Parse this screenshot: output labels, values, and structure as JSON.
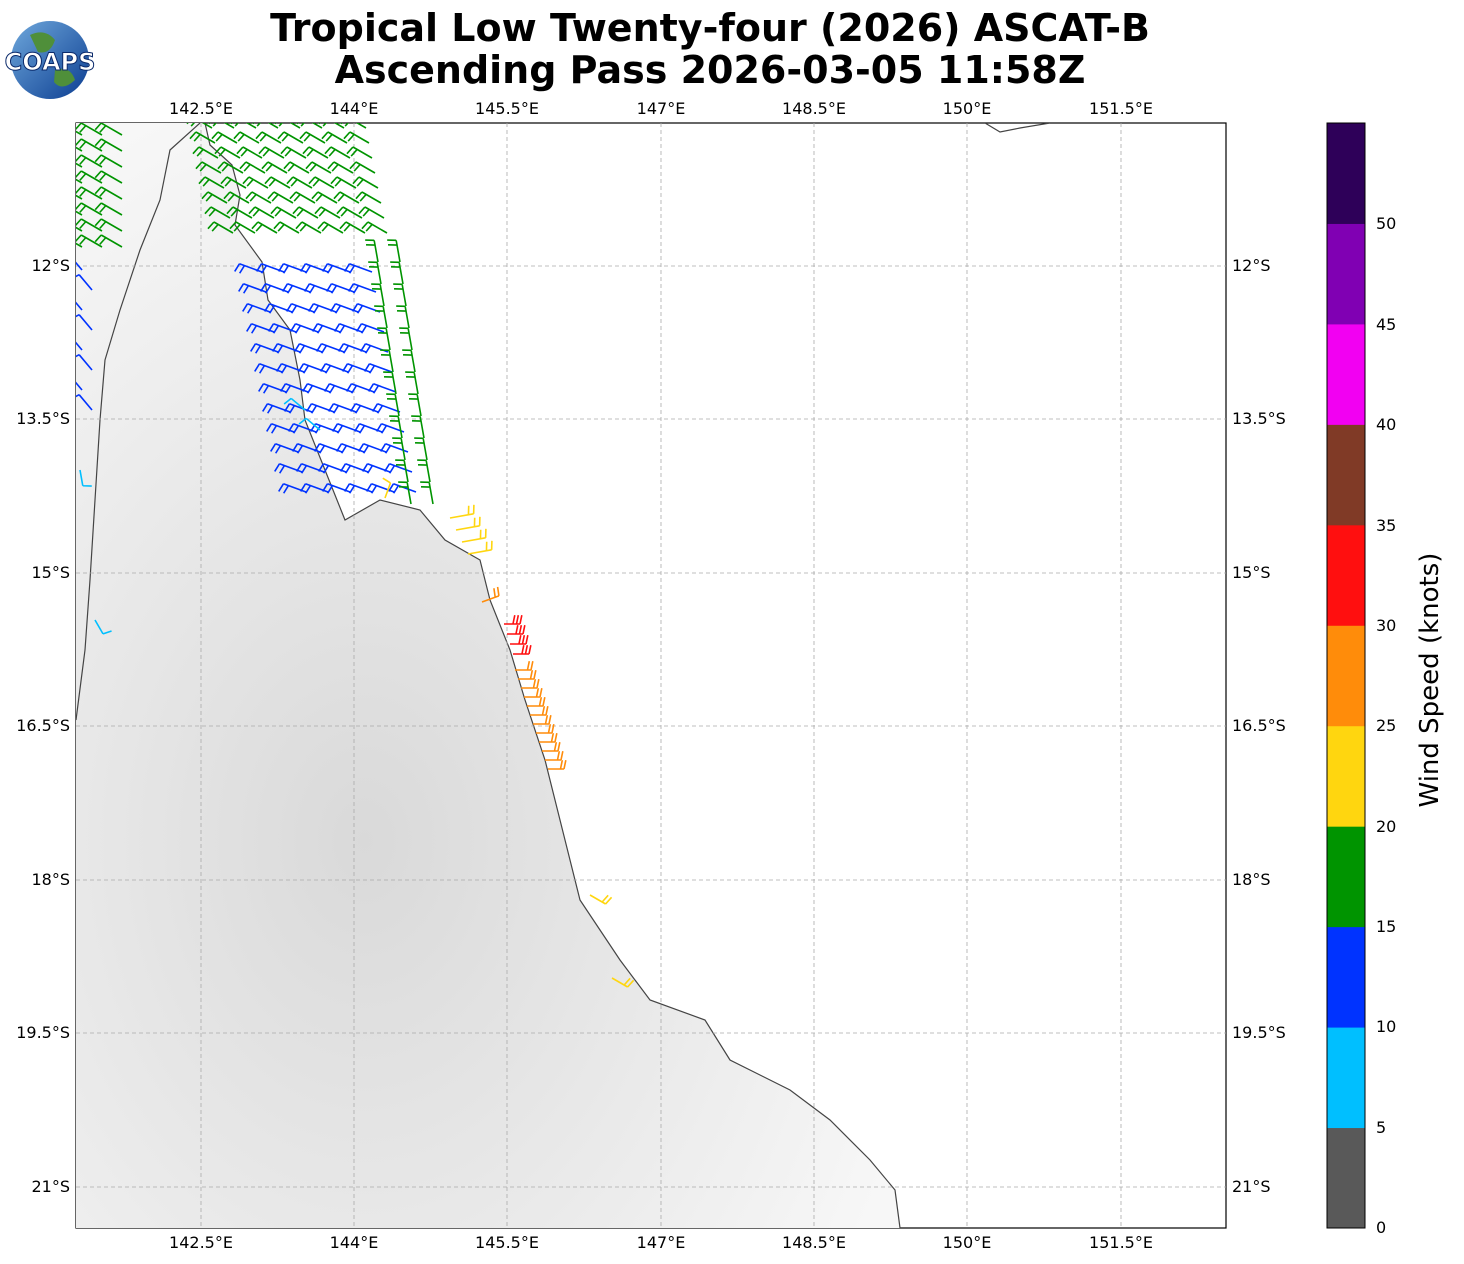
{
  "title": {
    "line1": "Tropical Low Twenty-four (2026) ASCAT-B",
    "line2": "Ascending Pass 2026-03-05 11:58Z"
  },
  "logo": {
    "text": "COAPS"
  },
  "axes": {
    "lon_labels": [
      "142.5°E",
      "144°E",
      "145.5°E",
      "147°E",
      "148.5°E",
      "150°E",
      "151.5°E"
    ],
    "lat_labels": [
      "12°S",
      "13.5°S",
      "15°S",
      "16.5°S",
      "18°S",
      "19.5°S",
      "21°S"
    ]
  },
  "colorbar": {
    "label": "Wind Speed (knots)",
    "ticks": [
      "0",
      "5",
      "10",
      "15",
      "20",
      "25",
      "30",
      "35",
      "40",
      "45",
      "50"
    ],
    "colors": [
      "#595959",
      "#00bfff",
      "#0033ff",
      "#009400",
      "#ffd60f",
      "#ff8c0a",
      "#ff0f0f",
      "#803a26",
      "#f200f2",
      "#8000b3",
      "#2e0059"
    ]
  }
}
